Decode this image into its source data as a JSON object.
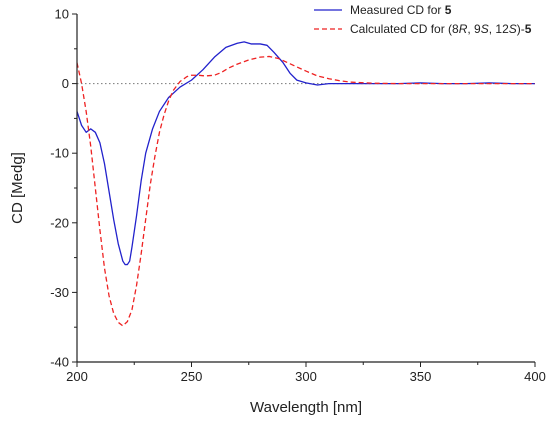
{
  "chart_data": {
    "type": "line",
    "xlabel": "Wavelength [nm]",
    "ylabel": "CD [Medg]",
    "xlim": [
      200,
      400
    ],
    "ylim": [
      -40,
      10
    ],
    "x_ticks": [
      200,
      250,
      300,
      350,
      400
    ],
    "y_ticks": [
      10,
      0,
      -10,
      -20,
      -30,
      -40
    ],
    "grid": false,
    "zero_line": true,
    "legend_position": "top-right",
    "series": [
      {
        "name": "Measured CD for 5",
        "legend_parts": [
          {
            "text": "Measured CD for ",
            "style": "normal"
          },
          {
            "text": "5",
            "style": "bold"
          }
        ],
        "color": "#2222cc",
        "dash": "solid",
        "points": [
          [
            200,
            -4
          ],
          [
            202,
            -6
          ],
          [
            204,
            -7
          ],
          [
            206,
            -6.5
          ],
          [
            208,
            -7
          ],
          [
            210,
            -8.5
          ],
          [
            212,
            -11.5
          ],
          [
            214,
            -15.5
          ],
          [
            216,
            -19.5
          ],
          [
            218,
            -23
          ],
          [
            220,
            -25.5
          ],
          [
            221,
            -26
          ],
          [
            222,
            -26
          ],
          [
            223,
            -25.5
          ],
          [
            224,
            -23.5
          ],
          [
            226,
            -19
          ],
          [
            228,
            -14
          ],
          [
            230,
            -10
          ],
          [
            233,
            -6.5
          ],
          [
            236,
            -4
          ],
          [
            240,
            -2
          ],
          [
            245,
            -0.5
          ],
          [
            250,
            0.5
          ],
          [
            255,
            2
          ],
          [
            260,
            3.8
          ],
          [
            265,
            5.2
          ],
          [
            270,
            5.8
          ],
          [
            273,
            6
          ],
          [
            276,
            5.7
          ],
          [
            280,
            5.7
          ],
          [
            283,
            5.5
          ],
          [
            286,
            4.5
          ],
          [
            290,
            3
          ],
          [
            293,
            1.5
          ],
          [
            296,
            0.5
          ],
          [
            300,
            0.1
          ],
          [
            305,
            -0.2
          ],
          [
            310,
            0
          ],
          [
            320,
            0
          ],
          [
            330,
            0
          ],
          [
            340,
            0
          ],
          [
            350,
            0.1
          ],
          [
            360,
            0
          ],
          [
            370,
            0
          ],
          [
            380,
            0.1
          ],
          [
            390,
            0
          ],
          [
            400,
            0
          ]
        ]
      },
      {
        "name": "Calculated CD for (8R, 9S, 12S)-5",
        "legend_parts": [
          {
            "text": "Calculated CD for (8",
            "style": "normal"
          },
          {
            "text": "R",
            "style": "italic"
          },
          {
            "text": ", 9",
            "style": "normal"
          },
          {
            "text": "S",
            "style": "italic"
          },
          {
            "text": ", 12",
            "style": "normal"
          },
          {
            "text": "S",
            "style": "italic"
          },
          {
            "text": ")-",
            "style": "normal"
          },
          {
            "text": "5",
            "style": "bold"
          }
        ],
        "color": "#ee2222",
        "dash": "dashed",
        "points": [
          [
            200,
            3
          ],
          [
            202,
            0
          ],
          [
            204,
            -4
          ],
          [
            206,
            -9
          ],
          [
            208,
            -15
          ],
          [
            210,
            -21
          ],
          [
            212,
            -26.5
          ],
          [
            214,
            -30.5
          ],
          [
            216,
            -33
          ],
          [
            218,
            -34.3
          ],
          [
            220,
            -34.8
          ],
          [
            222,
            -34.2
          ],
          [
            224,
            -32.5
          ],
          [
            226,
            -29
          ],
          [
            228,
            -24.5
          ],
          [
            230,
            -19.5
          ],
          [
            232,
            -14.5
          ],
          [
            234,
            -10.5
          ],
          [
            236,
            -7
          ],
          [
            238,
            -4.5
          ],
          [
            240,
            -2.5
          ],
          [
            242,
            -1
          ],
          [
            245,
            0.3
          ],
          [
            248,
            1
          ],
          [
            250,
            1.2
          ],
          [
            253,
            1.2
          ],
          [
            256,
            1.1
          ],
          [
            260,
            1.2
          ],
          [
            263,
            1.6
          ],
          [
            266,
            2.2
          ],
          [
            270,
            2.8
          ],
          [
            275,
            3.4
          ],
          [
            280,
            3.8
          ],
          [
            284,
            3.9
          ],
          [
            288,
            3.6
          ],
          [
            292,
            3
          ],
          [
            296,
            2.4
          ],
          [
            300,
            1.8
          ],
          [
            305,
            1.1
          ],
          [
            310,
            0.7
          ],
          [
            315,
            0.4
          ],
          [
            320,
            0.2
          ],
          [
            330,
            0.05
          ],
          [
            340,
            0
          ],
          [
            360,
            0
          ],
          [
            380,
            0
          ],
          [
            400,
            0
          ]
        ]
      }
    ]
  }
}
